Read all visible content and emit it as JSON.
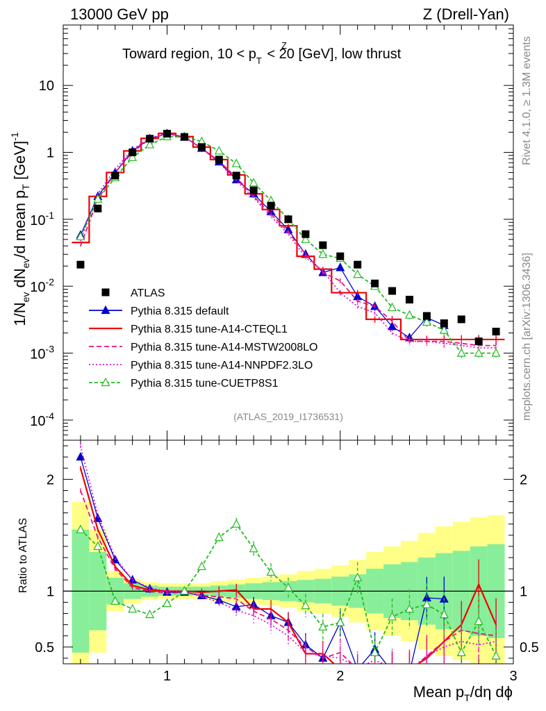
{
  "header": {
    "left_label": "13000 GeV pp",
    "right_label": "Z (Drell-Yan)"
  },
  "side_labels": {
    "rivet": "Rivet 4.1.0, ≥ 1.3M events",
    "mcplots": "mcplots.cern.ch [arXiv:1306.3436]"
  },
  "chart_data": {
    "type": "line",
    "title_main": "Toward region, 10 < p",
    "title_sup": "Z",
    "title_sub": "T",
    "title_rest": " < 20 [GeV], low thrust",
    "watermark": "(ATLAS_2019_I1736531)",
    "xlabel_main": "Mean p",
    "xlabel_sub": "T",
    "xlabel_rest": "/dη dϕ",
    "ylabel_parts": [
      "1/N",
      "ev",
      " dN",
      "ev",
      "/d mean p",
      "T",
      " [GeV]",
      "-1"
    ],
    "ratio_ylabel": "Ratio to ATLAS",
    "xlim": [
      0.4,
      3.0
    ],
    "ylim": [
      5e-05,
      80
    ],
    "ratio_ylim": [
      0.35,
      2.35
    ],
    "x_ticks": [
      {
        "v": 1,
        "label": "1"
      },
      {
        "v": 2,
        "label": "2"
      },
      {
        "v": 3,
        "label": "3"
      }
    ],
    "y_ticks": [
      {
        "v": 0.0001,
        "base": "10",
        "exp": "-4"
      },
      {
        "v": 0.001,
        "base": "10",
        "exp": "-3"
      },
      {
        "v": 0.01,
        "base": "10",
        "exp": "-2"
      },
      {
        "v": 0.1,
        "base": "10",
        "exp": "-1"
      },
      {
        "v": 1,
        "base": "1",
        "exp": ""
      },
      {
        "v": 10,
        "base": "10",
        "exp": ""
      }
    ],
    "ratio_ticks": [
      {
        "v": 0.5,
        "label": "0.5"
      },
      {
        "v": 1,
        "label": "1"
      },
      {
        "v": 2,
        "label": "2"
      }
    ],
    "x": [
      0.5,
      0.6,
      0.7,
      0.8,
      0.9,
      1.0,
      1.1,
      1.2,
      1.3,
      1.4,
      1.5,
      1.6,
      1.7,
      1.8,
      1.9,
      2.0,
      2.1,
      2.2,
      2.3,
      2.4,
      2.5,
      2.6,
      2.7,
      2.8,
      2.9
    ],
    "bin_edges": [
      0.45,
      0.55,
      0.65,
      0.75,
      0.85,
      0.95,
      1.05,
      1.15,
      1.25,
      1.35,
      1.45,
      1.55,
      1.65,
      1.75,
      1.85,
      1.95,
      2.05,
      2.15,
      2.25,
      2.35,
      2.45,
      2.55,
      2.65,
      2.75,
      2.85,
      2.95
    ],
    "ratio_band_green": [
      0.55,
      0.35,
      0.12,
      0.07,
      0.05,
      0.04,
      0.04,
      0.04,
      0.05,
      0.06,
      0.07,
      0.08,
      0.09,
      0.1,
      0.11,
      0.13,
      0.15,
      0.2,
      0.24,
      0.26,
      0.3,
      0.34,
      0.36,
      0.4,
      0.42
    ],
    "ratio_band_yellow": [
      0.8,
      0.55,
      0.18,
      0.11,
      0.08,
      0.07,
      0.07,
      0.07,
      0.09,
      0.1,
      0.12,
      0.13,
      0.15,
      0.18,
      0.2,
      0.23,
      0.28,
      0.35,
      0.4,
      0.45,
      0.52,
      0.58,
      0.62,
      0.66,
      0.68
    ],
    "series": [
      {
        "name": "ATLAS",
        "color": "#000000",
        "marker": "square",
        "values": [
          0.021,
          0.145,
          0.45,
          1.0,
          1.6,
          1.9,
          1.7,
          1.2,
          0.78,
          0.45,
          0.27,
          0.16,
          0.1,
          0.06,
          0.041,
          0.028,
          0.021,
          0.011,
          0.0085,
          0.0063,
          0.0036,
          0.0028,
          0.0032,
          0.0015,
          0.0021
        ]
      },
      {
        "name": "Pythia 8.315 default",
        "color": "#0000cc",
        "marker": "tri-filled",
        "dash": "",
        "values": [
          0.058,
          0.22,
          0.5,
          1.05,
          1.6,
          1.9,
          1.7,
          1.15,
          0.72,
          0.39,
          0.24,
          0.13,
          0.07,
          0.03,
          0.016,
          0.019,
          0.007,
          0.005,
          0.0025,
          0.0017,
          0.0034,
          0.0026,
          null,
          null,
          null
        ],
        "ratio": [
          2.2,
          1.65,
          1.28,
          1.1,
          1.02,
          0.99,
          0.99,
          0.96,
          0.92,
          0.86,
          0.88,
          0.78,
          0.72,
          0.52,
          0.4,
          0.72,
          0.3,
          0.48,
          0.28,
          0.27,
          0.94,
          0.93,
          null,
          null,
          null
        ]
      },
      {
        "name": "Pythia 8.315 tune-A14-CTEQL1",
        "color": "#ee0000",
        "marker": "none",
        "dash": "",
        "steps": true,
        "values": [
          0.045,
          0.22,
          0.5,
          1.05,
          1.62,
          1.92,
          1.72,
          1.2,
          0.78,
          0.46,
          0.24,
          0.14,
          0.08,
          0.028,
          0.018,
          0.008,
          0.008,
          0.0032,
          0.0032,
          0.0016,
          0.0016,
          0.0016,
          0.0016,
          0.0016,
          0.0016
        ],
        "ratio": [
          2.1,
          1.55,
          1.22,
          1.05,
          1.01,
          1.0,
          1.0,
          0.99,
          1.0,
          1.01,
          0.84,
          0.84,
          0.72,
          0.44,
          0.44,
          0.3,
          0.3,
          0.3,
          0.3,
          0.3,
          0.4,
          0.55,
          0.7,
          1.06,
          0.7
        ]
      },
      {
        "name": "Pythia 8.315 tune-A14-MSTW2008LO",
        "color": "#ee1177",
        "marker": "none",
        "dash": "7,4",
        "values": [
          0.04,
          0.2,
          0.5,
          1.0,
          1.6,
          1.9,
          1.7,
          1.15,
          0.74,
          0.42,
          0.22,
          0.12,
          0.065,
          0.03,
          0.016,
          0.012,
          0.006,
          0.005,
          0.003,
          0.0015,
          0.0015,
          0.0015,
          0.0014,
          0.0013,
          0.0013
        ],
        "ratio": [
          1.9,
          1.48,
          1.2,
          1.03,
          1.0,
          0.98,
          0.99,
          0.96,
          0.95,
          0.93,
          0.82,
          0.75,
          0.65,
          0.5,
          0.4,
          0.45,
          0.3,
          0.35,
          0.3,
          0.28,
          0.42,
          0.55,
          0.65,
          0.62,
          0.6
        ]
      },
      {
        "name": "Pythia 8.315 tune-A14-NNPDF2.3LO",
        "color": "#dd11dd",
        "marker": "none",
        "dash": "2,3",
        "values": [
          0.048,
          0.24,
          0.56,
          1.1,
          1.65,
          1.92,
          1.7,
          1.14,
          0.7,
          0.38,
          0.21,
          0.11,
          0.06,
          0.027,
          0.017,
          0.008,
          0.005,
          0.004,
          0.002,
          0.0015,
          0.0015,
          0.0014,
          0.0013,
          0.0012,
          0.0012
        ],
        "ratio": [
          2.3,
          1.68,
          1.3,
          1.1,
          1.03,
          1.0,
          1.0,
          0.95,
          0.9,
          0.83,
          0.78,
          0.7,
          0.6,
          0.45,
          0.42,
          0.4,
          0.32,
          0.38,
          0.32,
          0.3,
          0.42,
          0.5,
          0.55,
          0.52,
          0.55
        ]
      },
      {
        "name": "Pythia 8.315 tune-CUETP8S1",
        "color": "#22bb22",
        "marker": "tri-open",
        "dash": "5,3",
        "values": [
          0.055,
          0.2,
          0.42,
          0.84,
          1.3,
          1.72,
          1.72,
          1.45,
          1.05,
          0.68,
          0.35,
          0.19,
          0.1,
          0.05,
          0.03,
          0.026,
          0.015,
          0.01,
          0.0048,
          0.0037,
          0.0029,
          0.0022,
          0.001,
          0.001,
          0.001
        ],
        "ratio": [
          1.55,
          1.4,
          0.91,
          0.84,
          0.79,
          0.89,
          1.0,
          1.22,
          1.48,
          1.6,
          1.38,
          1.17,
          1.03,
          0.87,
          0.68,
          0.72,
          1.12,
          0.45,
          0.77,
          0.84,
          0.88,
          0.79,
          0.45,
          0.73,
          0.42
        ]
      }
    ]
  }
}
